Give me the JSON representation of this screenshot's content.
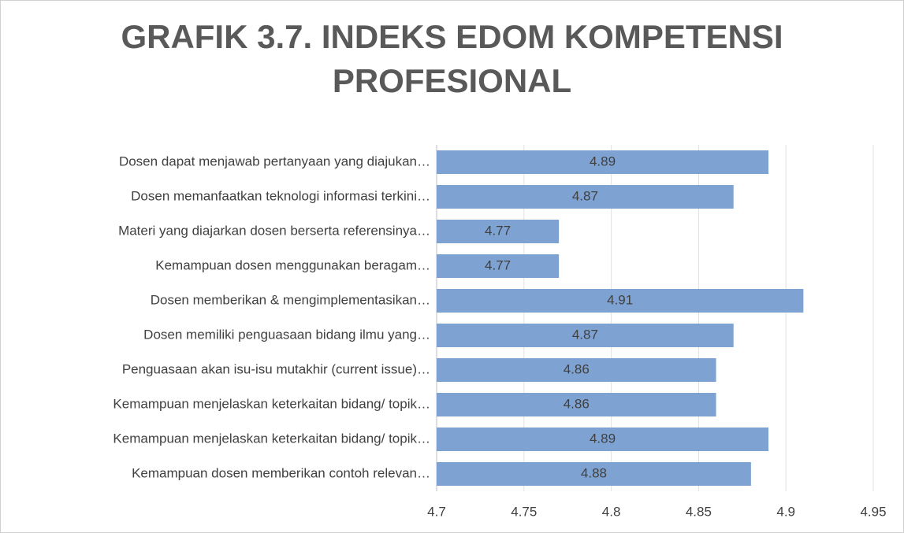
{
  "chart_data": {
    "type": "barh",
    "title": "GRAFIK 3.7. INDEKS EDOM KOMPETENSI PROFESIONAL",
    "categories": [
      "Dosen dapat menjawab pertanyaan yang diajukan…",
      "Dosen memanfaatkan teknologi informasi terkini…",
      "Materi yang diajarkan dosen berserta referensinya…",
      "Kemampuan dosen menggunakan beragam…",
      "Dosen memberikan & mengimplementasikan…",
      "Dosen memiliki penguasaan bidang ilmu yang…",
      "Penguasaan akan isu-isu mutakhir (current issue)…",
      "Kemampuan menjelaskan keterkaitan bidang/ topik…",
      "Kemampuan menjelaskan keterkaitan bidang/ topik…",
      "Kemampuan dosen memberikan contoh relevan…"
    ],
    "values": [
      4.89,
      4.87,
      4.77,
      4.77,
      4.91,
      4.87,
      4.86,
      4.86,
      4.89,
      4.88
    ],
    "color": "#7ea3d2",
    "xlim": [
      4.7,
      4.95
    ],
    "xticks": [
      4.7,
      4.75,
      4.8,
      4.85,
      4.9,
      4.95
    ],
    "grid": true
  }
}
